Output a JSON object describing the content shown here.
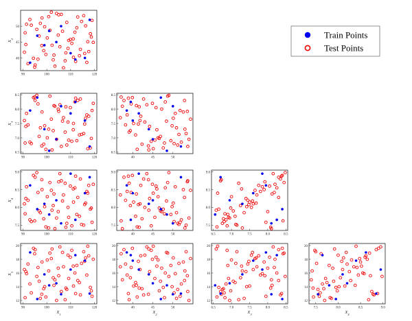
{
  "chart_data": {
    "type": "scatter",
    "layout": "lower-triangle pair plot",
    "legend": {
      "placement": "top-right",
      "entries": [
        {
          "label": "Train Points",
          "marker": "filled-circle",
          "color": "#0000ee"
        },
        {
          "label": "Test Points",
          "marker": "open-circle",
          "color": "#ee0000"
        }
      ]
    },
    "variables": {
      "X1": {
        "label": "X_1",
        "ticks": [
          90,
          100,
          110,
          120
        ],
        "lim": [
          89,
          121
        ]
      },
      "X2": {
        "label": "X_2",
        "ticks": [
          40,
          45,
          50
        ],
        "lim": [
          36,
          55
        ]
      },
      "X3": {
        "label": "X_3",
        "ticks": [
          6.5,
          7.0,
          7.5,
          8.0,
          8.5
        ],
        "lim": [
          6.45,
          8.55
        ]
      },
      "X4": {
        "label": "X_4",
        "ticks": [
          7.5,
          8.0,
          8.5,
          9.0
        ],
        "lim": [
          7.35,
          9.05
        ]
      },
      "X5": {
        "label": "X_5",
        "ticks": [
          12,
          14,
          16,
          18,
          20
        ],
        "lim": [
          11.5,
          20.3
        ]
      }
    },
    "panels": [
      {
        "row": "X2",
        "col": "X1"
      },
      {
        "row": "X3",
        "col": "X1"
      },
      {
        "row": "X3",
        "col": "X2"
      },
      {
        "row": "X4",
        "col": "X1"
      },
      {
        "row": "X4",
        "col": "X2"
      },
      {
        "row": "X4",
        "col": "X3"
      },
      {
        "row": "X5",
        "col": "X1"
      },
      {
        "row": "X5",
        "col": "X2"
      },
      {
        "row": "X5",
        "col": "X3"
      },
      {
        "row": "X5",
        "col": "X4"
      }
    ],
    "train": {
      "X1": [
        93.0,
        96.0,
        110.0,
        104.0,
        112.0,
        118.0,
        99.0,
        106.0,
        116.0,
        101.0
      ],
      "X2": [
        38.5,
        47.0,
        41.5,
        45.0,
        39.5,
        52.0,
        44.0,
        50.0,
        40.0,
        48.5
      ],
      "X3": [
        7.95,
        8.4,
        7.85,
        6.95,
        8.25,
        6.7,
        7.3,
        8.1,
        7.6,
        6.55
      ],
      "X4": [
        8.62,
        7.95,
        8.95,
        8.2,
        7.65,
        8.85,
        8.1,
        7.55,
        8.4,
        7.8
      ],
      "X5": [
        19.0,
        12.2,
        16.5,
        14.5,
        18.6,
        13.0,
        15.8,
        12.9,
        17.8,
        14.2
      ]
    },
    "test": {
      "X1": [
        91.2,
        93.5,
        95.1,
        96.8,
        98.0,
        99.6,
        101.3,
        102.7,
        104.1,
        105.5,
        107.0,
        108.4,
        109.9,
        111.2,
        112.6,
        114.1,
        115.5,
        116.8,
        118.3,
        119.5,
        90.6,
        92.9,
        94.4,
        97.3,
        100.2,
        103.4,
        106.1,
        108.9,
        111.8,
        113.7,
        117.2,
        119.0,
        92.1,
        95.8,
        98.7,
        101.9,
        104.8,
        107.7,
        110.5,
        113.0,
        115.9,
        118.7,
        91.5,
        94.9,
        97.9,
        100.8,
        103.0,
        106.6,
        109.2,
        112.1,
        114.6,
        117.6,
        90.9,
        96.3,
        99.1,
        102.2,
        105.0,
        108.0,
        111.1,
        116.3
      ],
      "X2": [
        44.2,
        50.3,
        37.8,
        46.9,
        52.6,
        41.1,
        48.7,
        39.4,
        54.0,
        43.5,
        36.9,
        51.2,
        45.8,
        40.2,
        49.5,
        42.7,
        53.3,
        38.6,
        47.6,
        44.9,
        41.8,
        52.1,
        39.9,
        50.9,
        46.3,
        37.4,
        53.7,
        43.0,
        48.1,
        40.7,
        45.1,
        51.8,
        38.2,
        49.0,
        42.3,
        54.4,
        47.2,
        39.1,
        44.6,
        52.9,
        41.4,
        46.6,
        50.6,
        37.1,
        43.9,
        53.0,
        40.9,
        48.4,
        45.5,
        38.9,
        51.5,
        42.0,
        47.9,
        39.6,
        49.8,
        44.0,
        53.6,
        41.6,
        46.0,
        50.1
      ],
      "X3": [
        7.4,
        6.8,
        8.3,
        7.05,
        7.9,
        6.6,
        8.45,
        7.25,
        6.95,
        8.15,
        7.7,
        6.75,
        8.05,
        7.5,
        6.9,
        8.35,
        7.15,
        7.8,
        6.65,
        8.2,
        7.6,
        6.85,
        8.4,
        7.35,
        7.0,
        8.1,
        6.7,
        7.55,
        8.25,
        7.1,
        6.62,
        7.95,
        7.45,
        8.48,
        6.78,
        7.65,
        8.0,
        7.2,
        6.88,
        8.3,
        7.48,
        6.98,
        7.85,
        8.42,
        6.72,
        7.3,
        8.12,
        7.58,
        6.92,
        8.38,
        7.12,
        7.75,
        6.82,
        8.18,
        7.42,
        6.58,
        7.92,
        8.08,
        7.28,
        7.68
      ],
      "X4": [
        8.25,
        7.6,
        8.85,
        7.9,
        8.5,
        7.45,
        8.7,
        8.05,
        7.7,
        8.95,
        8.35,
        7.55,
        8.6,
        8.15,
        7.8,
        8.8,
        7.5,
        8.45,
        7.95,
        8.65,
        8.1,
        7.65,
        8.9,
        7.85,
        8.3,
        7.4,
        8.75,
        8.0,
        8.55,
        7.75,
        8.4,
        7.58,
        8.2,
        8.98,
        7.68,
        8.48,
        7.88,
        8.68,
        7.48,
        8.28,
        8.08,
        7.98,
        8.58,
        7.62,
        8.78,
        7.42,
        8.38,
        8.18,
        7.72,
        8.88,
        7.52,
        8.62,
        7.82,
        8.42,
        8.02,
        7.92,
        8.72,
        7.44,
        8.52,
        8.12
      ],
      "X5": [
        16.2,
        13.1,
        19.4,
        14.8,
        17.6,
        12.5,
        18.9,
        15.3,
        12.0,
        19.8,
        16.9,
        13.6,
        18.3,
        14.1,
        17.1,
        12.8,
        19.1,
        15.7,
        13.9,
        18.0,
        16.5,
        14.4,
        19.6,
        12.3,
        17.9,
        15.0,
        13.3,
        18.6,
        16.0,
        14.6,
        19.9,
        12.6,
        17.3,
        15.5,
        13.7,
        18.1,
        16.7,
        12.1,
        19.3,
        14.9,
        17.7,
        13.4,
        15.9,
        18.8,
        12.9,
        16.3,
        14.2,
        19.0,
        15.2,
        13.0,
        17.4,
        18.5,
        12.4,
        16.8,
        14.0,
        19.5,
        15.6,
        13.8,
        17.0,
        18.2
      ]
    }
  }
}
